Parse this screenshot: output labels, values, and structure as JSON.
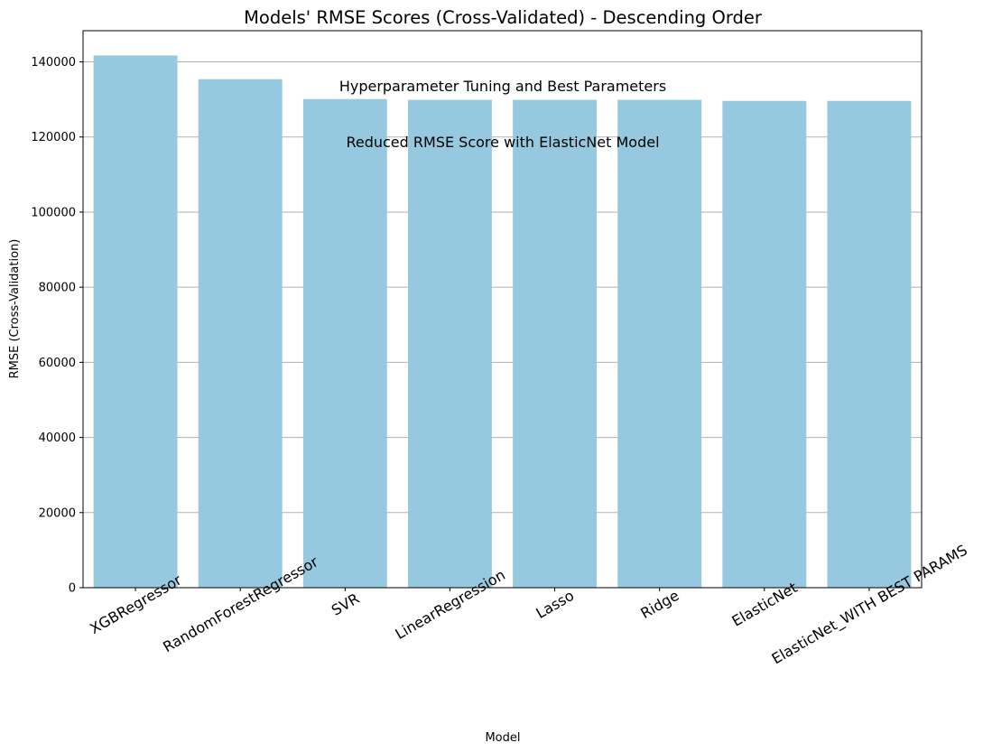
{
  "chart_data": {
    "type": "bar",
    "title": "Models' RMSE Scores (Cross-Validated) - Descending Order",
    "xlabel": "Model",
    "ylabel": "RMSE (Cross-Validation)",
    "categories": [
      "XGBRegressor",
      "RandomForestRegressor",
      "SVR",
      "LinearRegression",
      "Lasso",
      "Ridge",
      "ElasticNet",
      "ElasticNet_WITH BEST PARAMS"
    ],
    "values": [
      141700,
      135400,
      130100,
      129900,
      129900,
      129900,
      129600,
      129600
    ],
    "ylim": [
      0,
      148300
    ],
    "yticks": [
      0,
      20000,
      40000,
      60000,
      80000,
      100000,
      120000,
      140000
    ],
    "ytick_labels": [
      "0",
      "20000",
      "40000",
      "60000",
      "80000",
      "100000",
      "120000",
      "140000"
    ],
    "grid": "y",
    "bar_color": "#96c9df",
    "grid_color": "#b0b0b0",
    "annotations": [
      "Hyperparameter Tuning and Best Parameters",
      "Reduced RMSE Score with ElasticNet Model"
    ]
  }
}
